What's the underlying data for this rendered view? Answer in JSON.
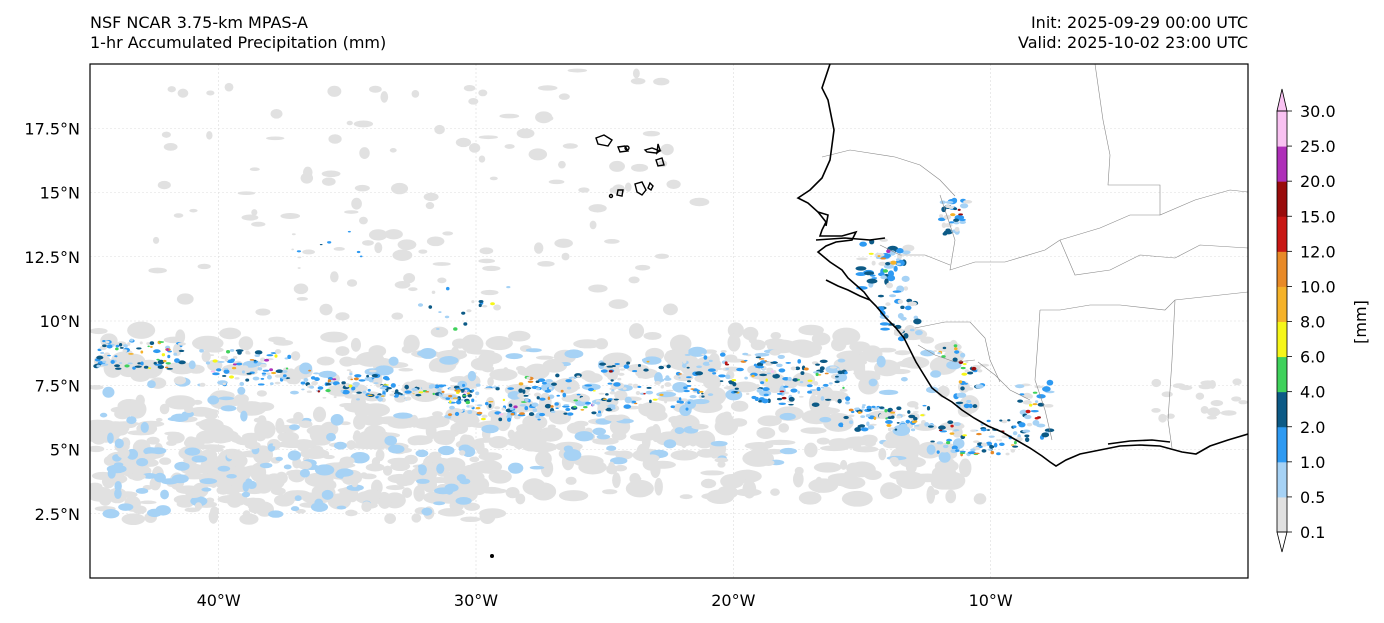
{
  "header": {
    "model": "NSF NCAR 3.75-km MPAS-A",
    "field": "1-hr Accumulated Precipitation (mm)",
    "init": "Init: 2025-09-29 00:00 UTC",
    "valid": "Valid: 2025-10-02 23:00 UTC"
  },
  "axes": {
    "lon_labels": [
      "40°W",
      "30°W",
      "20°W",
      "10°W"
    ],
    "lat_labels": [
      "17.5°N",
      "15°N",
      "12.5°N",
      "10°N",
      "7.5°N",
      "5°N",
      "2.5°N"
    ],
    "lon_values": [
      -40,
      -30,
      -20,
      -10
    ],
    "lat_values": [
      17.5,
      15,
      12.5,
      10,
      7.5,
      5,
      2.5
    ],
    "extent": {
      "lon_min": -45,
      "lon_max": 0,
      "lat_min": 0,
      "lat_max": 20
    }
  },
  "colorbar": {
    "unit_label": "[mm]",
    "levels": [
      "0.1",
      "0.5",
      "1.0",
      "2.0",
      "4.0",
      "6.0",
      "8.0",
      "10.0",
      "12.0",
      "15.0",
      "20.0",
      "25.0",
      "30.0"
    ],
    "colors": [
      "#e1e1e1",
      "#a6d2f5",
      "#2e9af2",
      "#0c5a86",
      "#3fd15b",
      "#f6f619",
      "#f5b229",
      "#e88a28",
      "#c81714",
      "#990c0c",
      "#ae2fb8",
      "#f9c2f2"
    ]
  },
  "colors": {
    "coastline": "#000000",
    "borders": "#888888",
    "grid": "#dddddd"
  }
}
